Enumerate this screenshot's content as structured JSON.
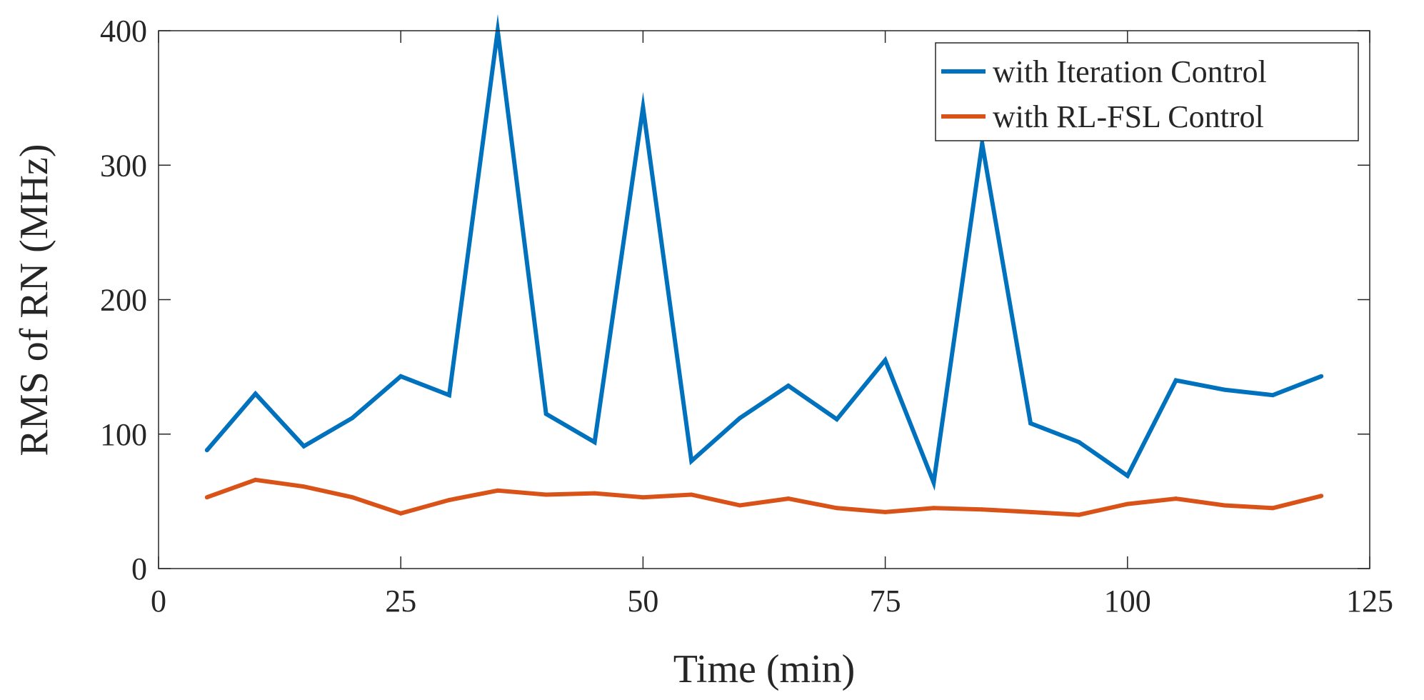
{
  "chart_data": {
    "type": "line",
    "xlabel": "Time (min)",
    "ylabel": "RMS of RN (MHz)",
    "xlim": [
      0,
      125
    ],
    "ylim": [
      0,
      400
    ],
    "xticks": [
      "0",
      "25",
      "50",
      "75",
      "100",
      "125"
    ],
    "yticks": [
      "0",
      "100",
      "200",
      "300",
      "400"
    ],
    "grid": false,
    "legend_position": "top-right",
    "x": [
      5,
      10,
      15,
      20,
      25,
      30,
      35,
      40,
      45,
      50,
      55,
      60,
      65,
      70,
      75,
      80,
      85,
      90,
      95,
      100,
      105,
      110,
      115,
      120
    ],
    "series": [
      {
        "name": "with Iteration Control",
        "color": "#0072BD",
        "values": [
          88,
          130,
          91,
          112,
          143,
          129,
          400,
          115,
          94,
          343,
          80,
          112,
          136,
          111,
          155,
          64,
          316,
          108,
          94,
          69,
          140,
          133,
          129,
          143
        ]
      },
      {
        "name": "with RL-FSL Control",
        "color": "#D95319",
        "values": [
          53,
          66,
          61,
          53,
          41,
          51,
          58,
          55,
          56,
          53,
          55,
          47,
          52,
          45,
          42,
          45,
          44,
          42,
          40,
          48,
          52,
          47,
          45,
          54
        ]
      }
    ]
  }
}
